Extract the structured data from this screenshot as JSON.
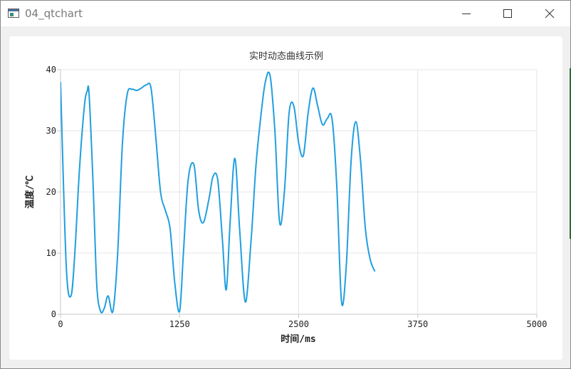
{
  "window": {
    "title": "04_qtchart",
    "icon": "app-window-icon",
    "buttons": {
      "minimize": "minimize-icon",
      "maximize": "maximize-icon",
      "close": "close-icon"
    }
  },
  "chart_data": {
    "type": "line",
    "title": "实时动态曲线示例",
    "xlabel": "时间/ms",
    "ylabel": "温度/℃",
    "xlim": [
      0,
      5000
    ],
    "ylim": [
      0,
      40
    ],
    "xticks": [
      "0",
      "1250",
      "2500",
      "3750",
      "5000"
    ],
    "yticks": [
      "0",
      "10",
      "20",
      "30",
      "40"
    ],
    "grid": true,
    "line_color": "#209fdf",
    "series": [
      {
        "x": [
          0,
          60,
          110,
          150,
          200,
          250,
          280,
          300,
          340,
          380,
          420,
          460,
          500,
          550,
          600,
          650,
          700,
          750,
          800,
          850,
          900,
          950,
          1000,
          1050,
          1100,
          1150,
          1200,
          1250,
          1290,
          1340,
          1400,
          1450,
          1500,
          1560,
          1600,
          1650,
          1700,
          1740,
          1780,
          1830,
          1880,
          1940,
          2000,
          2050,
          2100,
          2150,
          2200,
          2250,
          2300,
          2350,
          2400,
          2450,
          2500,
          2550,
          2600,
          2650,
          2700,
          2750,
          2800,
          2850,
          2900,
          2950,
          3000,
          3050,
          3100,
          3150,
          3200,
          3250,
          3300
        ],
        "y": [
          38,
          8,
          3,
          10,
          24,
          34,
          36.5,
          36,
          22,
          5,
          0.5,
          1,
          3,
          0.5,
          10,
          28,
          36,
          36.8,
          36.6,
          37,
          37.5,
          37,
          29,
          20,
          17,
          14,
          5,
          0.5,
          10,
          22,
          24.5,
          17,
          15,
          19,
          22.5,
          22,
          12,
          4,
          15,
          25.5,
          14,
          2,
          12,
          24,
          32,
          38,
          39,
          30,
          15,
          20,
          33,
          34,
          28,
          26,
          33,
          37,
          34,
          31,
          32,
          32,
          21,
          2,
          8,
          25,
          31.5,
          25,
          14,
          9,
          7
        ]
      }
    ]
  }
}
